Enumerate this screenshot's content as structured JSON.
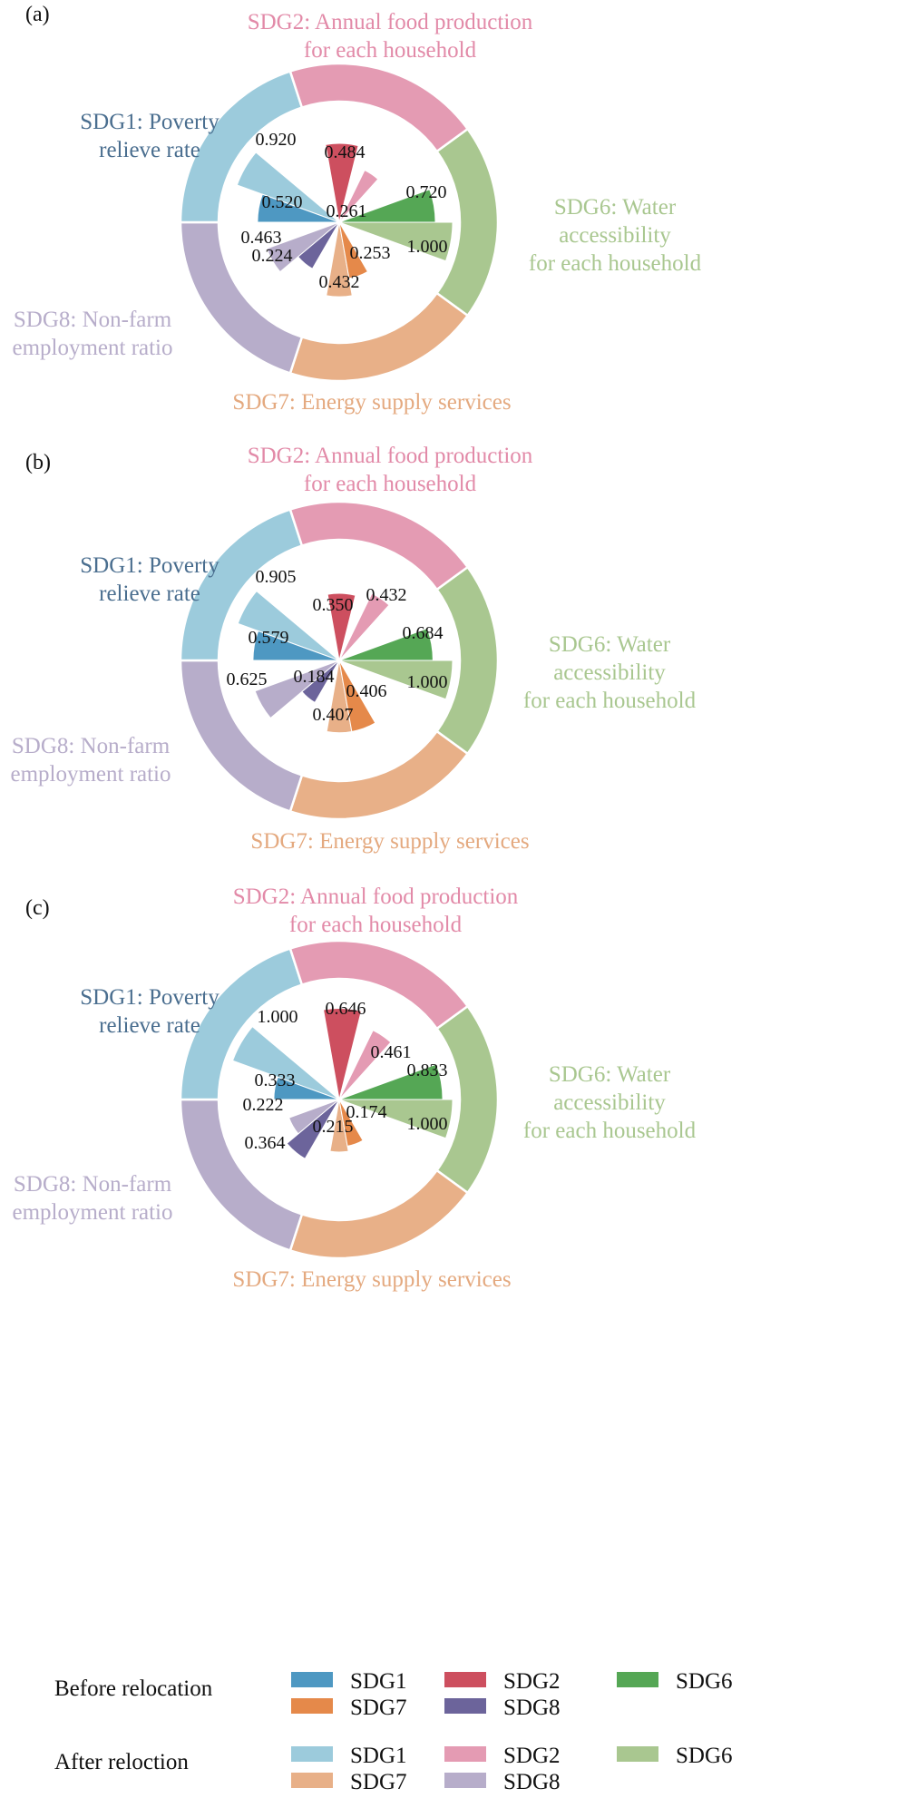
{
  "colors": {
    "before": {
      "SDG1": "#4e98c2",
      "SDG2": "#cd4f5f",
      "SDG6": "#55a755",
      "SDG7": "#e5894a",
      "SDG8": "#6c649b"
    },
    "after": {
      "SDG1": "#9ccbdc",
      "SDG2": "#e49bb3",
      "SDG6": "#a9c790",
      "SDG7": "#e8b088",
      "SDG8": "#b7adca"
    },
    "labels": {
      "SDG1": "#4a6e8f",
      "SDG2": "#e28aa8",
      "SDG6": "#a9c790",
      "SDG7": "#e4a97f",
      "SDG8": "#b7adca"
    }
  },
  "chart_data": [
    {
      "panel": "(a)",
      "type": "polar-bar",
      "outer_labels": {
        "SDG1": [
          "SDG1: Poverty",
          "relieve rate"
        ],
        "SDG2": [
          "SDG2: Annual food production",
          "for each household"
        ],
        "SDG6": [
          "SDG6: Water",
          "accessibility",
          "for each household"
        ],
        "SDG7": [
          "SDG7: Energy supply services"
        ],
        "SDG8": [
          "SDG8: Non-farm",
          "employment ratio"
        ]
      },
      "series": [
        {
          "name": "Before relocation",
          "values": {
            "SDG1": 0.52,
            "SDG2": 0.484,
            "SDG6": 0.72,
            "SDG7": 0.253,
            "SDG8": 0.224
          },
          "labels": {
            "SDG1": "0.520",
            "SDG2": "0.484",
            "SDG6": "0.720",
            "SDG7": "0.253",
            "SDG8": "0.224"
          }
        },
        {
          "name": "After reloction",
          "values": {
            "SDG1": 0.92,
            "SDG2": 0.261,
            "SDG6": 1.0,
            "SDG7": 0.432,
            "SDG8": 0.463
          },
          "labels": {
            "SDG1": "0.920",
            "SDG2": "0.261",
            "SDG6": "1.000",
            "SDG7": "0.432",
            "SDG8": "0.463"
          }
        }
      ]
    },
    {
      "panel": "(b)",
      "type": "polar-bar",
      "outer_labels": {
        "SDG1": [
          "SDG1: Poverty",
          "relieve rate"
        ],
        "SDG2": [
          "SDG2: Annual food production",
          "for each household"
        ],
        "SDG6": [
          "SDG6: Water",
          "accessibility",
          "for each household"
        ],
        "SDG7": [
          "SDG7: Energy supply services"
        ],
        "SDG8": [
          "SDG8: Non-farm",
          "employment ratio"
        ]
      },
      "series": [
        {
          "name": "Before relocation",
          "values": {
            "SDG1": 0.579,
            "SDG2": 0.35,
            "SDG6": 0.684,
            "SDG7": 0.406,
            "SDG8": 0.184
          },
          "labels": {
            "SDG1": "0.579",
            "SDG2": "0.350",
            "SDG6": "0.684",
            "SDG7": "0.406",
            "SDG8": "0.184"
          }
        },
        {
          "name": "After reloction",
          "values": {
            "SDG1": 0.905,
            "SDG2": 0.432,
            "SDG6": 1.0,
            "SDG7": 0.407,
            "SDG8": 0.625
          },
          "labels": {
            "SDG1": "0.905",
            "SDG2": "0.432",
            "SDG6": "1.000",
            "SDG7": "0.407",
            "SDG8": "0.625"
          }
        }
      ]
    },
    {
      "panel": "(c)",
      "type": "polar-bar",
      "outer_labels": {
        "SDG1": [
          "SDG1: Poverty",
          "relieve rate"
        ],
        "SDG2": [
          "SDG2: Annual food production",
          "for each household"
        ],
        "SDG6": [
          "SDG6: Water",
          "accessibility",
          "for each household"
        ],
        "SDG7": [
          "SDG7: Energy supply services"
        ],
        "SDG8": [
          "SDG8: Non-farm",
          "employment ratio"
        ]
      },
      "series": [
        {
          "name": "Before relocation",
          "values": {
            "SDG1": 0.333,
            "SDG2": 0.646,
            "SDG6": 0.833,
            "SDG7": 0.174,
            "SDG8": 0.364
          },
          "labels": {
            "SDG1": "0.333",
            "SDG2": "0.646",
            "SDG6": "0.833",
            "SDG7": "0.174",
            "SDG8": "0.364"
          }
        },
        {
          "name": "After reloction",
          "values": {
            "SDG1": 1.0,
            "SDG2": 0.461,
            "SDG6": 1.0,
            "SDG7": 0.215,
            "SDG8": 0.222
          },
          "labels": {
            "SDG1": "1.000",
            "SDG2": "0.461",
            "SDG6": "1.000",
            "SDG7": "0.215",
            "SDG8": "0.222"
          }
        }
      ]
    }
  ],
  "legend": {
    "before": {
      "title": "Before relocation",
      "items": [
        "SDG1",
        "SDG2",
        "SDG6",
        "SDG7",
        "SDG8"
      ]
    },
    "after": {
      "title": "After reloction",
      "items": [
        "SDG1",
        "SDG2",
        "SDG6",
        "SDG7",
        "SDG8"
      ]
    }
  }
}
